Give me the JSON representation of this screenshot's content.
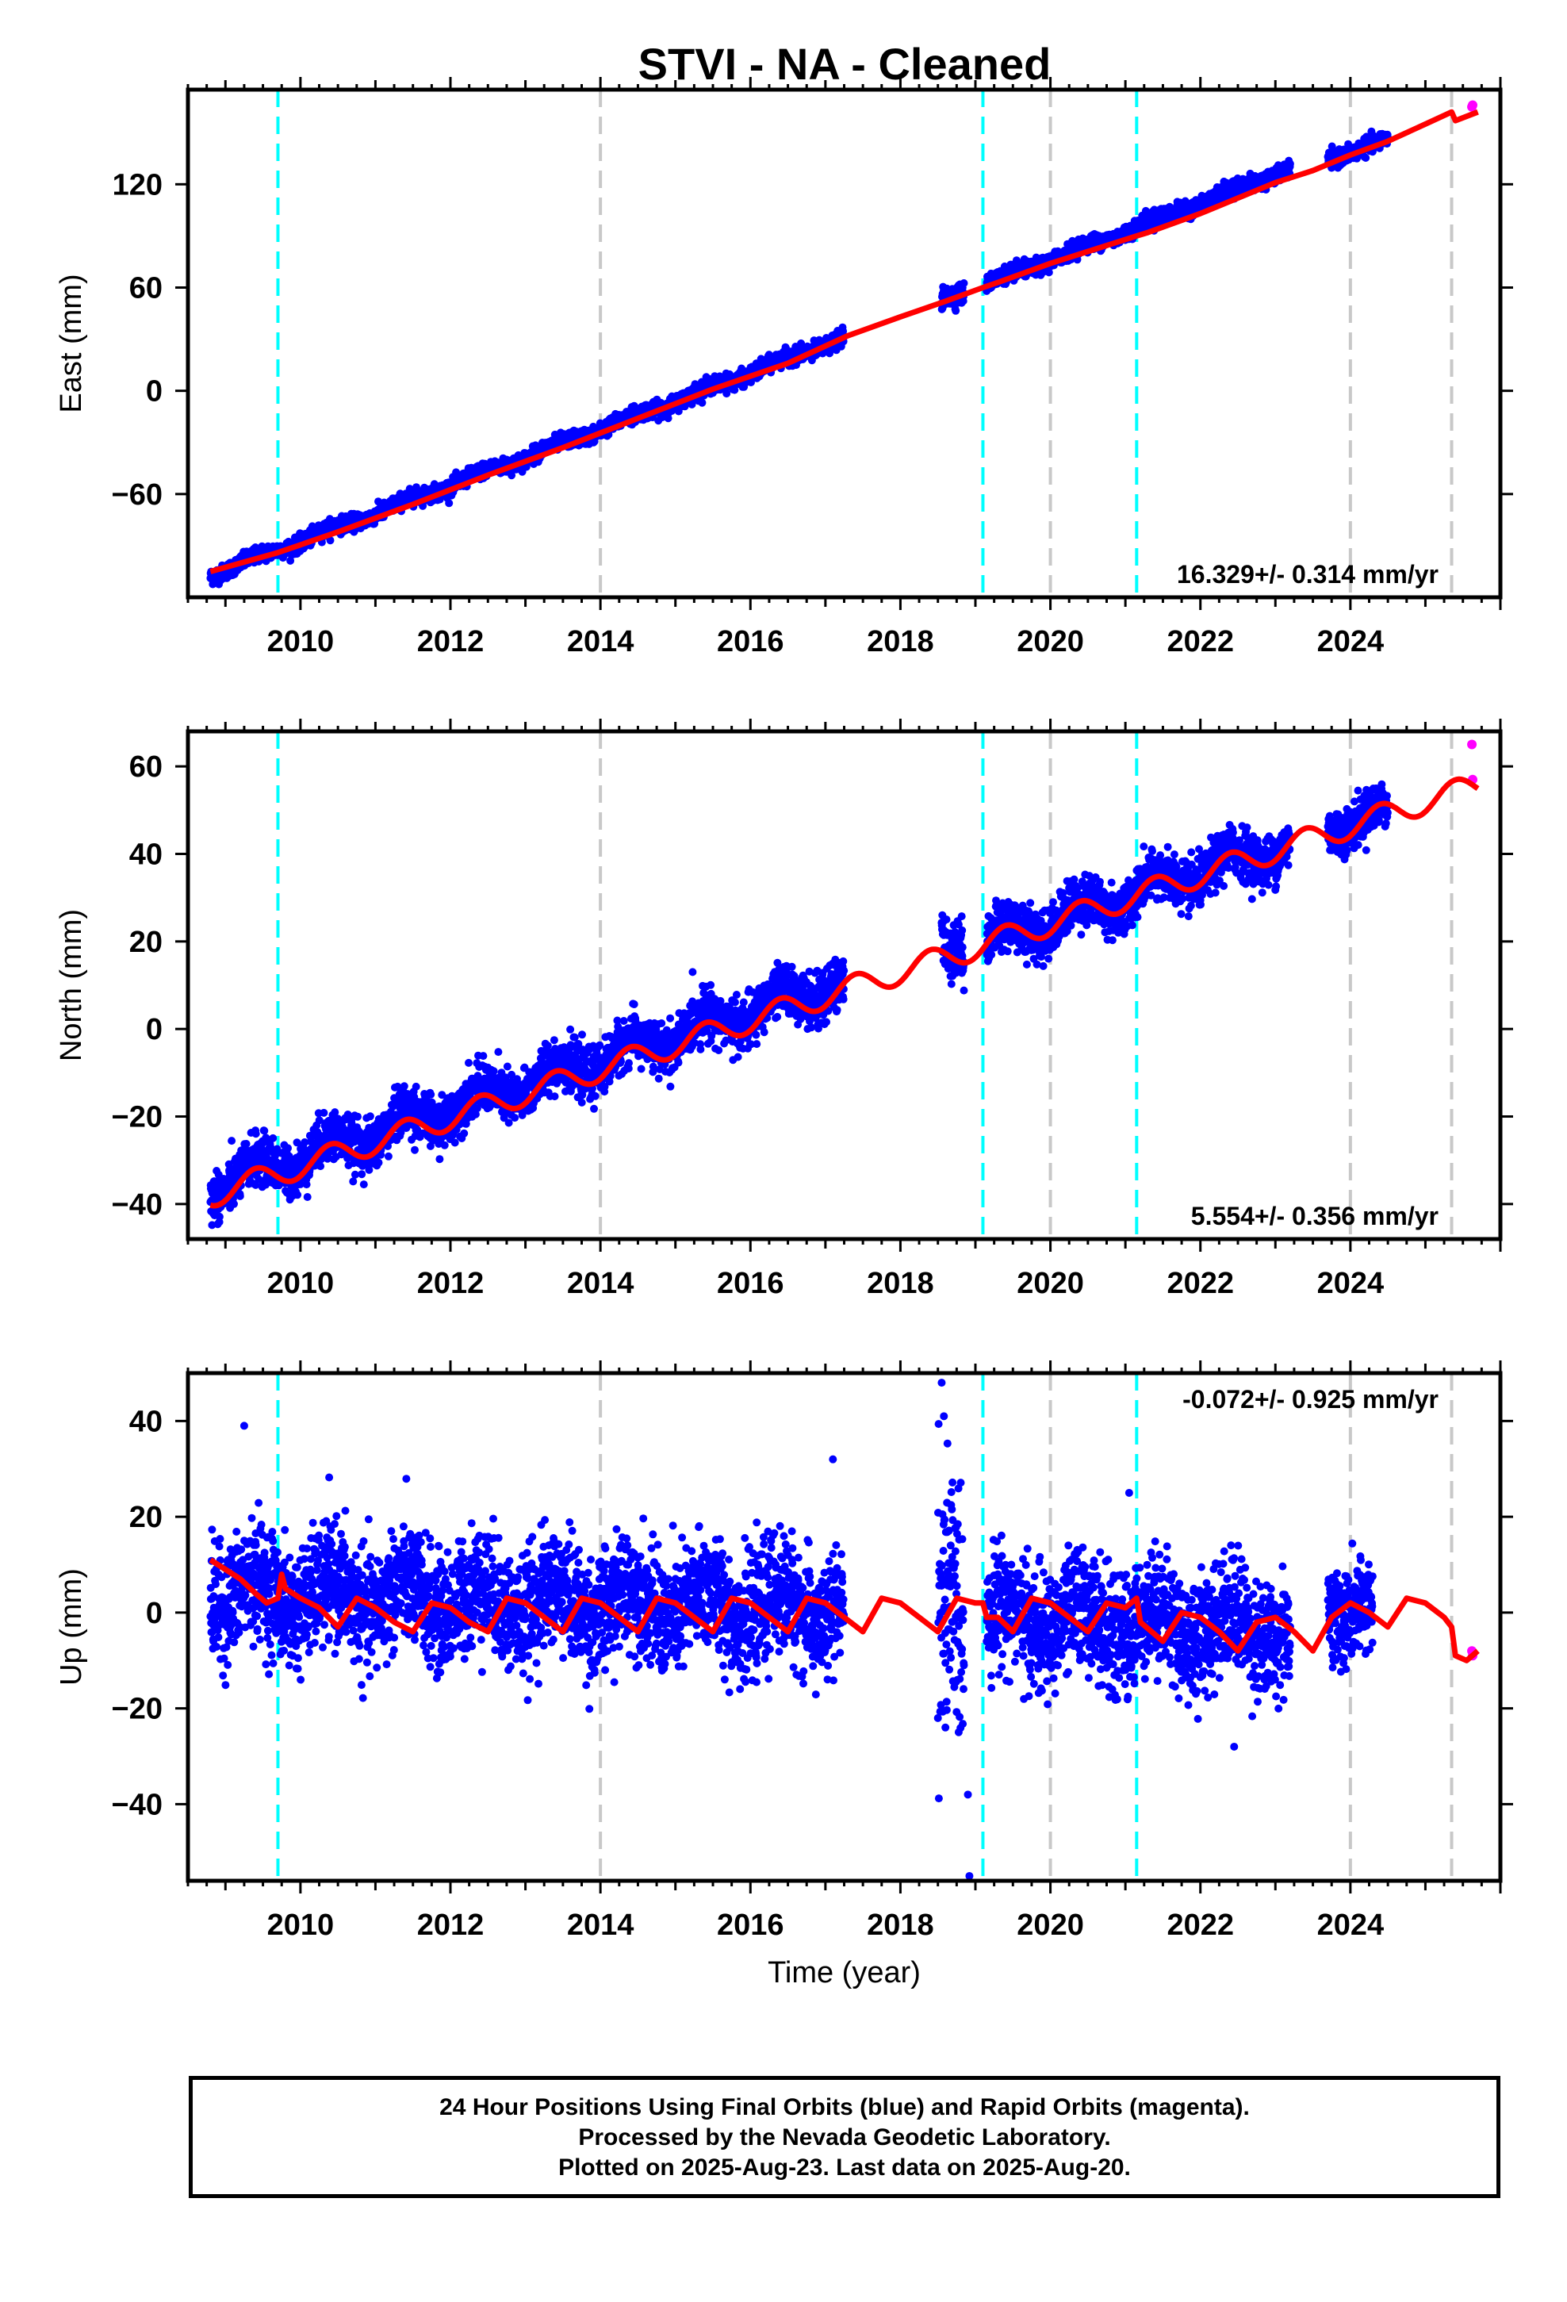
{
  "title": "STVI  - NA - Cleaned",
  "footer": {
    "line1": "24 Hour Positions Using Final Orbits (blue) and Rapid Orbits (magenta).",
    "line2": "Processed by the Nevada Geodetic Laboratory.",
    "line3": "Plotted on 2025-Aug-23. Last data on 2025-Aug-20."
  },
  "colors": {
    "final": "#0000ff",
    "rapid": "#ff00ff",
    "model": "#ff0000",
    "equipment_change": "#00ffff",
    "other_event": "#c8c8c8"
  },
  "chart_data": [
    {
      "type": "scatter",
      "panel": "east",
      "ylabel": "East (mm)",
      "xlabel": "",
      "xlim": [
        2008.5,
        2026.0
      ],
      "ylim": [
        -120,
        175
      ],
      "x_ticks": [
        2010,
        2012,
        2014,
        2016,
        2018,
        2020,
        2022,
        2024
      ],
      "y_ticks": [
        -60,
        0,
        60,
        120
      ],
      "rate_label": "16.329+/- 0.314 mm/yr",
      "rate_position": "bottom-right",
      "equipment_changes": [
        2009.7,
        2019.1,
        2021.15
      ],
      "other_events": [
        2014.0,
        2020.0,
        2024.0,
        2025.35
      ],
      "series": [
        {
          "name": "Final Orbits",
          "color": "#0000ff",
          "segments": [
            {
              "start": 2008.8,
              "end": 2017.25,
              "slope": 16.3,
              "base_year": 2008.8,
              "base_value": -107,
              "seasonal_amp": 1.5,
              "scatter": 2.2
            },
            {
              "start": 2018.55,
              "end": 2018.85,
              "slope": 16.3,
              "base_year": 2018.55,
              "base_value": 53,
              "seasonal_amp": 1.0,
              "scatter": 3.0
            },
            {
              "start": 2019.15,
              "end": 2023.2,
              "slope": 16.6,
              "base_year": 2019.15,
              "base_value": 62,
              "seasonal_amp": 1.5,
              "scatter": 2.2
            },
            {
              "start": 2023.7,
              "end": 2024.5,
              "slope": 15.0,
              "base_year": 2023.7,
              "base_value": 134,
              "seasonal_amp": 1.0,
              "scatter": 2.2
            }
          ]
        },
        {
          "name": "Rapid Orbits",
          "color": "#ff00ff",
          "points": [
            [
              2025.62,
              165
            ],
            [
              2025.63,
              166
            ]
          ]
        },
        {
          "name": "Model",
          "color": "#ff0000",
          "points": [
            [
              2008.8,
              -105
            ],
            [
              2009.7,
              -94
            ],
            [
              2010.5,
              -82
            ],
            [
              2011.5,
              -66
            ],
            [
              2012.5,
              -49
            ],
            [
              2013.5,
              -33
            ],
            [
              2014.5,
              -16
            ],
            [
              2015.5,
              1
            ],
            [
              2016.5,
              16
            ],
            [
              2017.3,
              32
            ],
            [
              2018.0,
              43
            ],
            [
              2018.6,
              52
            ],
            [
              2019.1,
              60
            ],
            [
              2019.3,
              63
            ],
            [
              2020.0,
              74
            ],
            [
              2021.15,
              90
            ],
            [
              2021.3,
              92
            ],
            [
              2022.0,
              103
            ],
            [
              2023.0,
              121
            ],
            [
              2023.5,
              128
            ],
            [
              2024.0,
              137
            ],
            [
              2024.5,
              145
            ],
            [
              2025.0,
              155
            ],
            [
              2025.35,
              162
            ],
            [
              2025.4,
              157
            ],
            [
              2025.7,
              162
            ]
          ]
        }
      ]
    },
    {
      "type": "scatter",
      "panel": "north",
      "ylabel": "North (mm)",
      "xlabel": "",
      "xlim": [
        2008.5,
        2026.0
      ],
      "ylim": [
        -48,
        68
      ],
      "x_ticks": [
        2010,
        2012,
        2014,
        2016,
        2018,
        2020,
        2022,
        2024
      ],
      "y_ticks": [
        -40,
        -20,
        0,
        20,
        40,
        60
      ],
      "rate_label": "5.554+/- 0.356 mm/yr",
      "rate_position": "bottom-right",
      "equipment_changes": [
        2009.7,
        2019.1,
        2021.15
      ],
      "other_events": [
        2014.0,
        2020.0,
        2024.0,
        2025.35
      ],
      "series": [
        {
          "name": "Final Orbits",
          "color": "#0000ff",
          "segments": [
            {
              "start": 2008.8,
              "end": 2017.25,
              "slope": 5.55,
              "base_year": 2008.8,
              "base_value": -36,
              "seasonal_amp": 2.8,
              "scatter": 2.8
            },
            {
              "start": 2018.55,
              "end": 2018.85,
              "slope": 5.55,
              "base_year": 2018.55,
              "base_value": 18,
              "seasonal_amp": 2.0,
              "scatter": 3.5
            },
            {
              "start": 2019.15,
              "end": 2023.2,
              "slope": 5.55,
              "base_year": 2019.15,
              "base_value": 20,
              "seasonal_amp": 2.8,
              "scatter": 2.8
            },
            {
              "start": 2023.7,
              "end": 2024.5,
              "slope": 5.0,
              "base_year": 2023.7,
              "base_value": 46,
              "seasonal_amp": 2.0,
              "scatter": 2.5
            }
          ]
        },
        {
          "name": "Rapid Orbits",
          "color": "#ff00ff",
          "points": [
            [
              2025.62,
              65
            ],
            [
              2025.63,
              57
            ]
          ]
        },
        {
          "name": "Model",
          "color": "#ff0000",
          "trend": {
            "slope": 5.55,
            "base_year": 2008.8,
            "base_value": -38,
            "seasonal_amp": 2.8,
            "start": 2008.8,
            "end": 2025.7
          }
        }
      ]
    },
    {
      "type": "scatter",
      "panel": "up",
      "ylabel": "Up (mm)",
      "xlabel": "Time (year)",
      "xlim": [
        2008.5,
        2026.0
      ],
      "ylim": [
        -56,
        50
      ],
      "x_ticks": [
        2010,
        2012,
        2014,
        2016,
        2018,
        2020,
        2022,
        2024
      ],
      "y_ticks": [
        -40,
        -20,
        0,
        20,
        40
      ],
      "rate_label": "-0.072+/- 0.925 mm/yr",
      "rate_position": "top-right",
      "equipment_changes": [
        2009.7,
        2019.1,
        2021.15
      ],
      "other_events": [
        2014.0,
        2020.0,
        2024.0,
        2025.35
      ],
      "series": [
        {
          "name": "Final Orbits",
          "color": "#0000ff",
          "segments": [
            {
              "start": 2008.8,
              "end": 2017.25,
              "slope": -0.4,
              "base_year": 2008.8,
              "base_value": 4,
              "seasonal_amp": 3.5,
              "scatter": 6.0
            },
            {
              "start": 2018.5,
              "end": 2018.85,
              "slope": 0.0,
              "base_year": 2018.5,
              "base_value": 2,
              "seasonal_amp": 2.0,
              "scatter": 14.0
            },
            {
              "start": 2019.15,
              "end": 2023.2,
              "slope": -0.6,
              "base_year": 2019.15,
              "base_value": -1,
              "seasonal_amp": 3.5,
              "scatter": 6.0
            },
            {
              "start": 2023.7,
              "end": 2024.3,
              "slope": 0.0,
              "base_year": 2023.7,
              "base_value": 1,
              "seasonal_amp": 2.5,
              "scatter": 5.0
            }
          ],
          "outliers": [
            [
              2009.25,
              39
            ],
            [
              2018.55,
              48
            ],
            [
              2018.58,
              41
            ],
            [
              2018.9,
              -38
            ],
            [
              2018.92,
              -55
            ],
            [
              2017.1,
              32
            ],
            [
              2021.05,
              25
            ],
            [
              2022.45,
              -28
            ],
            [
              2018.6,
              -24
            ]
          ]
        },
        {
          "name": "Rapid Orbits",
          "color": "#ff00ff",
          "points": [
            [
              2025.62,
              -8
            ],
            [
              2025.63,
              -9
            ]
          ]
        },
        {
          "name": "Model",
          "color": "#ff0000",
          "points": [
            [
              2008.8,
              11
            ],
            [
              2009.0,
              9
            ],
            [
              2009.2,
              7
            ],
            [
              2009.4,
              4
            ],
            [
              2009.55,
              2
            ],
            [
              2009.7,
              3
            ],
            [
              2009.75,
              8
            ],
            [
              2009.8,
              5
            ],
            [
              2010.0,
              3
            ],
            [
              2010.25,
              1
            ],
            [
              2010.5,
              -3
            ],
            [
              2010.75,
              3
            ],
            [
              2011.0,
              1
            ],
            [
              2011.25,
              -2
            ],
            [
              2011.5,
              -4
            ],
            [
              2011.75,
              2
            ],
            [
              2012.0,
              1
            ],
            [
              2012.25,
              -2
            ],
            [
              2012.5,
              -4
            ],
            [
              2012.75,
              3
            ],
            [
              2013.0,
              2
            ],
            [
              2013.25,
              -1
            ],
            [
              2013.5,
              -4
            ],
            [
              2013.75,
              3
            ],
            [
              2014.0,
              2
            ],
            [
              2014.25,
              -1
            ],
            [
              2014.5,
              -4
            ],
            [
              2014.75,
              3
            ],
            [
              2015.0,
              2
            ],
            [
              2015.25,
              -1
            ],
            [
              2015.5,
              -4
            ],
            [
              2015.75,
              3
            ],
            [
              2016.0,
              2
            ],
            [
              2016.25,
              -1
            ],
            [
              2016.5,
              -4
            ],
            [
              2016.75,
              3
            ],
            [
              2017.0,
              2
            ],
            [
              2017.25,
              -1
            ],
            [
              2017.5,
              -4
            ],
            [
              2017.75,
              3
            ],
            [
              2018.0,
              2
            ],
            [
              2018.25,
              -1
            ],
            [
              2018.5,
              -4
            ],
            [
              2018.75,
              3
            ],
            [
              2019.0,
              2
            ],
            [
              2019.1,
              2
            ],
            [
              2019.15,
              -1
            ],
            [
              2019.3,
              -1
            ],
            [
              2019.5,
              -4
            ],
            [
              2019.75,
              3
            ],
            [
              2020.0,
              2
            ],
            [
              2020.25,
              -1
            ],
            [
              2020.5,
              -4
            ],
            [
              2020.75,
              2
            ],
            [
              2021.0,
              1
            ],
            [
              2021.15,
              3
            ],
            [
              2021.2,
              -2
            ],
            [
              2021.5,
              -6
            ],
            [
              2021.75,
              0
            ],
            [
              2022.0,
              -1
            ],
            [
              2022.25,
              -4
            ],
            [
              2022.5,
              -8
            ],
            [
              2022.75,
              -2
            ],
            [
              2023.0,
              -1
            ],
            [
              2023.25,
              -4
            ],
            [
              2023.5,
              -8
            ],
            [
              2023.75,
              -1
            ],
            [
              2024.0,
              2
            ],
            [
              2024.25,
              0
            ],
            [
              2024.5,
              -3
            ],
            [
              2024.75,
              3
            ],
            [
              2025.0,
              2
            ],
            [
              2025.25,
              -1
            ],
            [
              2025.35,
              -3
            ],
            [
              2025.4,
              -9
            ],
            [
              2025.55,
              -10
            ],
            [
              2025.7,
              -8
            ]
          ]
        }
      ]
    }
  ]
}
